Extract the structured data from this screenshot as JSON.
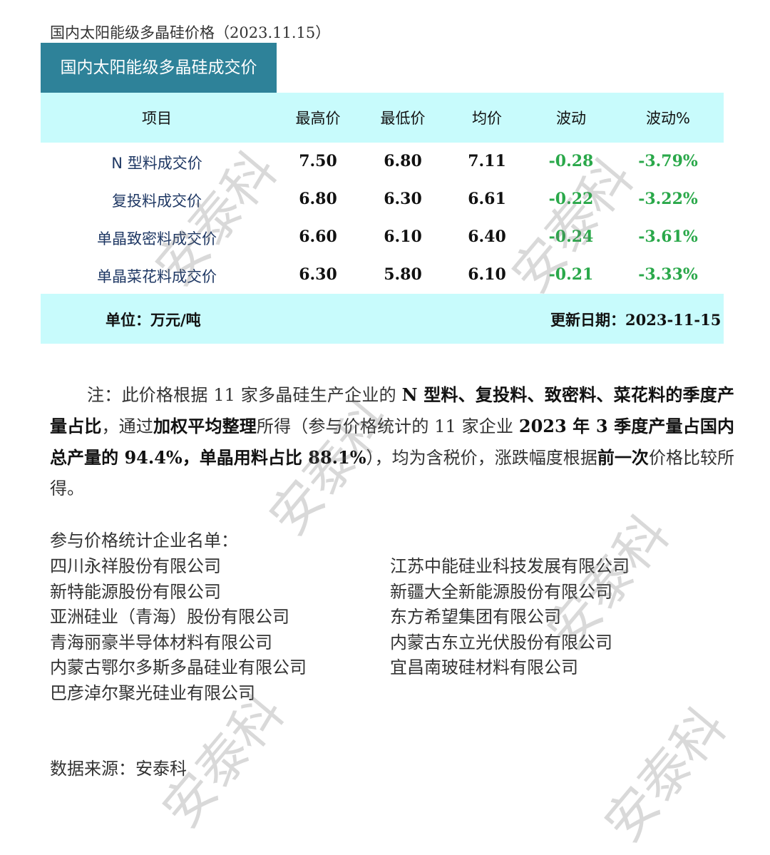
{
  "doc_title": "国内太阳能级多晶硅价格（2023.11.15）",
  "table": {
    "title": "国内太阳能级多晶硅成交价",
    "headers": [
      "项目",
      "最高价",
      "最低价",
      "均价",
      "波动",
      "波动%"
    ],
    "rows": [
      {
        "item": "N 型料成交价",
        "high": "7.50",
        "low": "6.80",
        "avg": "7.11",
        "change": "-0.28",
        "pct": "-3.79%"
      },
      {
        "item": "复投料成交价",
        "high": "6.80",
        "low": "6.30",
        "avg": "6.61",
        "change": "-0.22",
        "pct": "-3.22%"
      },
      {
        "item": "单晶致密料成交价",
        "high": "6.60",
        "low": "6.10",
        "avg": "6.40",
        "change": "-0.24",
        "pct": "-3.61%"
      },
      {
        "item": "单晶菜花料成交价",
        "high": "6.30",
        "low": "5.80",
        "avg": "6.10",
        "change": "-0.21",
        "pct": "-3.33%"
      }
    ],
    "unit": "单位：万元/吨",
    "update": "更新日期：2023-11-15"
  },
  "note": [
    {
      "t": "注：此价格根据 11 家多晶硅生产企业的 ",
      "b": false
    },
    {
      "t": "N 型料、复投料、致密料、菜花料的季度产量占比",
      "b": true
    },
    {
      "t": "，通过",
      "b": false
    },
    {
      "t": "加权平均整理",
      "b": true
    },
    {
      "t": "所得（参与价格统计的 11 家企业 ",
      "b": false
    },
    {
      "t": "2023 年 3 季度产量占国内总产量的 94.4%，单晶用料占比 88.1%",
      "b": true
    },
    {
      "t": "），均为含税价，涨跌幅度根据",
      "b": false
    },
    {
      "t": "前一次",
      "b": true
    },
    {
      "t": "价格比较所得。",
      "b": false
    }
  ],
  "companies": {
    "label": "参与价格统计企业名单：",
    "left": [
      "四川永祥股份有限公司",
      "新特能源股份有限公司",
      "亚洲硅业（青海）股份有限公司",
      "青海丽豪半导体材料有限公司",
      "内蒙古鄂尔多斯多晶硅业有限公司",
      "巴彦淖尔聚光硅业有限公司"
    ],
    "right": [
      "江苏中能硅业科技发展有限公司",
      "新疆大全新能源股份有限公司",
      "东方希望集团有限公司",
      "内蒙古东立光伏股份有限公司",
      "宜昌南玻硅材料有限公司"
    ]
  },
  "source": "数据来源：安泰科",
  "watermark": "安泰科",
  "colors": {
    "title_box": "#2e8299",
    "band": "#c8fbfc",
    "negative": "#2aa84a",
    "item_text": "#1f3864"
  }
}
